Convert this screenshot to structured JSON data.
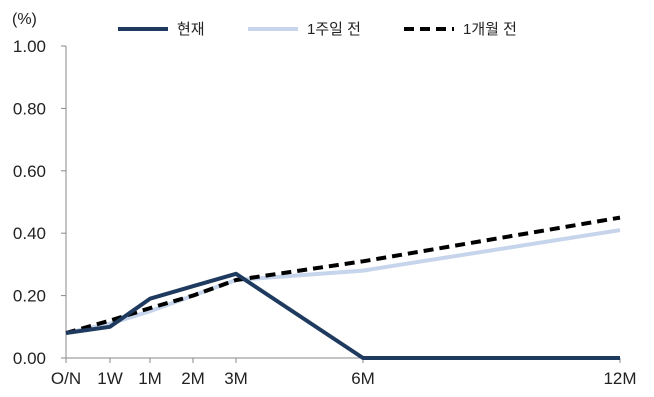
{
  "chart_data": {
    "type": "line",
    "unit_label": "(%)",
    "x_tick_labels": [
      "O/N",
      "1W",
      "1M",
      "2M",
      "3M",
      "6M",
      "12M"
    ],
    "y_tick_labels": [
      "0.00",
      "0.20",
      "0.40",
      "0.60",
      "0.80",
      "1.00"
    ],
    "ylim": [
      0,
      1.0
    ],
    "grid": false,
    "legend_position": "top",
    "series": [
      {
        "name": "현재",
        "color": "#1f3a5f",
        "dash": "solid",
        "points": [
          {
            "x": "O/N",
            "y": 0.08
          },
          {
            "x": "1W",
            "y": 0.1
          },
          {
            "x": "1M",
            "y": 0.19
          },
          {
            "x": "2M",
            "y": 0.23
          },
          {
            "x": "3M",
            "y": 0.27
          },
          {
            "x": "6M",
            "y": 0.0
          },
          {
            "x": "12M",
            "y": 0.0
          }
        ]
      },
      {
        "name": "1주일 전",
        "color": "#c6d5ec",
        "dash": "solid",
        "points": [
          {
            "x": "O/N",
            "y": 0.08
          },
          {
            "x": "1W",
            "y": 0.11
          },
          {
            "x": "1M",
            "y": 0.15
          },
          {
            "x": "2M",
            "y": 0.2
          },
          {
            "x": "3M",
            "y": 0.25
          },
          {
            "x": "6M",
            "y": 0.28
          },
          {
            "x": "12M",
            "y": 0.41
          }
        ]
      },
      {
        "name": "1개월 전",
        "color": "#000000",
        "dash": "dashed",
        "points": [
          {
            "x": "O/N",
            "y": 0.08
          },
          {
            "x": "1W",
            "y": 0.12
          },
          {
            "x": "1M",
            "y": 0.16
          },
          {
            "x": "2M",
            "y": 0.2
          },
          {
            "x": "3M",
            "y": 0.25
          },
          {
            "x": "6M",
            "y": 0.31
          },
          {
            "x": "12M",
            "y": 0.45
          }
        ]
      }
    ]
  }
}
